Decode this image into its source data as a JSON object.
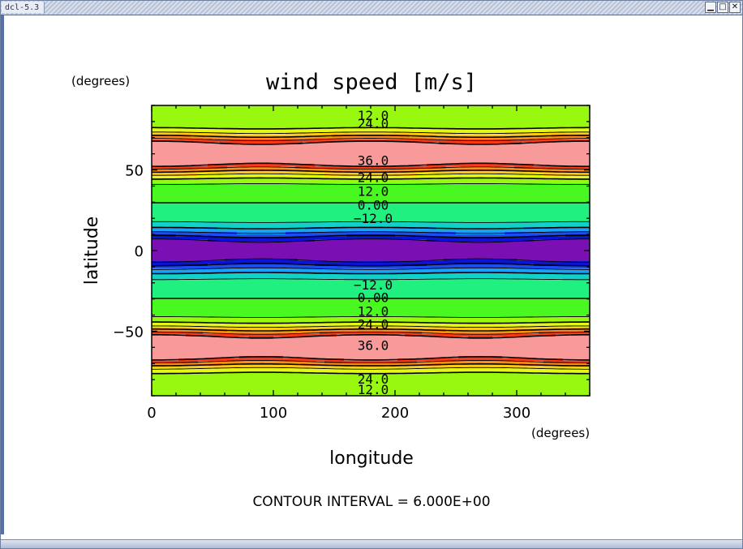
{
  "window": {
    "title": "dcl-5.3",
    "controls": {
      "minimize_glyph": "▁",
      "maximize_glyph": "□",
      "close_glyph": "✕"
    }
  },
  "plot": {
    "title": "wind speed [m/s]",
    "y_unit_label": "(degrees)",
    "x_unit_label": "(degrees)",
    "ylabel": "latitude",
    "xlabel": "longitude",
    "contour_interval_text": "CONTOUR INTERVAL = 6.000E+00",
    "x_ticks": [
      "0",
      "100",
      "200",
      "300"
    ],
    "y_ticks": [
      "50",
      "0",
      "−50"
    ],
    "contour_labels": [
      {
        "text": "12.0",
        "lon": 180,
        "lat": 84
      },
      {
        "text": "24.0",
        "lon": 180,
        "lat": 79
      },
      {
        "text": "36.0",
        "lon": 180,
        "lat": 56
      },
      {
        "text": "24.0",
        "lon": 180,
        "lat": 45.5
      },
      {
        "text": "12.0",
        "lon": 180,
        "lat": 37
      },
      {
        "text": "0.00",
        "lon": 180,
        "lat": 28.5
      },
      {
        "text": "−12.0",
        "lon": 180,
        "lat": 20
      },
      {
        "text": "−12.0",
        "lon": 180,
        "lat": -21
      },
      {
        "text": "0.00",
        "lon": 180,
        "lat": -29
      },
      {
        "text": "12.0",
        "lon": 180,
        "lat": -37.5
      },
      {
        "text": "24.0",
        "lon": 180,
        "lat": -45.5
      },
      {
        "text": "36.0",
        "lon": 180,
        "lat": -58.5
      },
      {
        "text": "24.0",
        "lon": 180,
        "lat": -79.5
      },
      {
        "text": "12.0",
        "lon": 180,
        "lat": -86
      }
    ],
    "colors": {
      "level_fills": [
        "#7a10b4",
        "#0a14d8",
        "#1a4ef4",
        "#1aa0f4",
        "#10d2c8",
        "#20f080",
        "#48f820",
        "#98f810",
        "#e4f818",
        "#ffc818",
        "#ff8a14",
        "#f83a1a",
        "#f89a9a"
      ]
    }
  },
  "chart_data": {
    "type": "heatmap",
    "title": "wind speed [m/s]",
    "xlabel": "longitude",
    "ylabel": "latitude",
    "xlim": [
      0,
      360
    ],
    "ylim": [
      -90,
      90
    ],
    "x_ticks": [
      0,
      100,
      200,
      300
    ],
    "y_ticks": [
      50,
      0,
      -50
    ],
    "contour_interval": 6.0,
    "contour_levels": [
      -30,
      -24,
      -18,
      -12,
      -6,
      0,
      6,
      12,
      18,
      24,
      30,
      36
    ],
    "negative_contours_dashed": true,
    "field_description_points": [
      {
        "lat": 60,
        "lon": 0,
        "value": 40
      },
      {
        "lat": 60,
        "lon": 90,
        "value": 30
      },
      {
        "lat": 60,
        "lon": 180,
        "value": 40
      },
      {
        "lat": 60,
        "lon": 270,
        "value": 30
      },
      {
        "lat": 0,
        "lon": 0,
        "value": -31
      },
      {
        "lat": 0,
        "lon": 90,
        "value": -25
      },
      {
        "lat": 0,
        "lon": 180,
        "value": -31
      },
      {
        "lat": 0,
        "lon": 270,
        "value": -25
      },
      {
        "lat": -60,
        "lon": 0,
        "value": 40
      },
      {
        "lat": -60,
        "lon": 90,
        "value": 30
      },
      {
        "lat": -60,
        "lon": 180,
        "value": 40
      },
      {
        "lat": -60,
        "lon": 270,
        "value": 30
      },
      {
        "lat": 90,
        "lon": 0,
        "value": 8
      },
      {
        "lat": 30,
        "lon": 0,
        "value": 0
      },
      {
        "lat": -30,
        "lon": 0,
        "value": 0
      },
      {
        "lat": -90,
        "lon": 0,
        "value": 8
      }
    ]
  }
}
